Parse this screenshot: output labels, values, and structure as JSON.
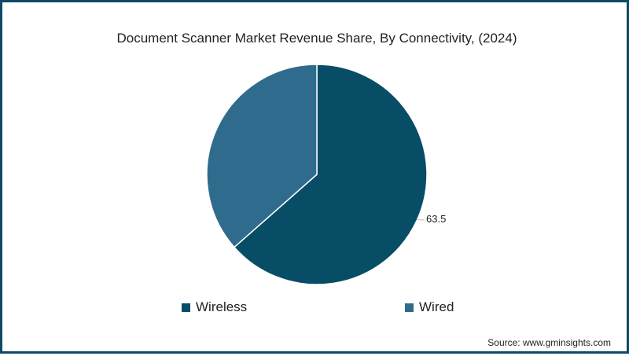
{
  "chart_data": {
    "type": "pie",
    "title": "Document Scanner Market Revenue Share, By Connectivity, (2024)",
    "categories": [
      "Wireless",
      "Wired"
    ],
    "values": [
      63.5,
      36.5
    ],
    "colors": [
      "#084d66",
      "#2f6b8c"
    ],
    "data_labels": [
      "63.5",
      ""
    ],
    "start_angle": "12 o'clock, clockwise",
    "legend_position": "bottom"
  },
  "legend": [
    {
      "label": "Wireless",
      "color": "#084d66"
    },
    {
      "label": "Wired",
      "color": "#2f6b8c"
    }
  ],
  "source": "Source: www.gminsights.com",
  "border_color": "#0d4a66"
}
